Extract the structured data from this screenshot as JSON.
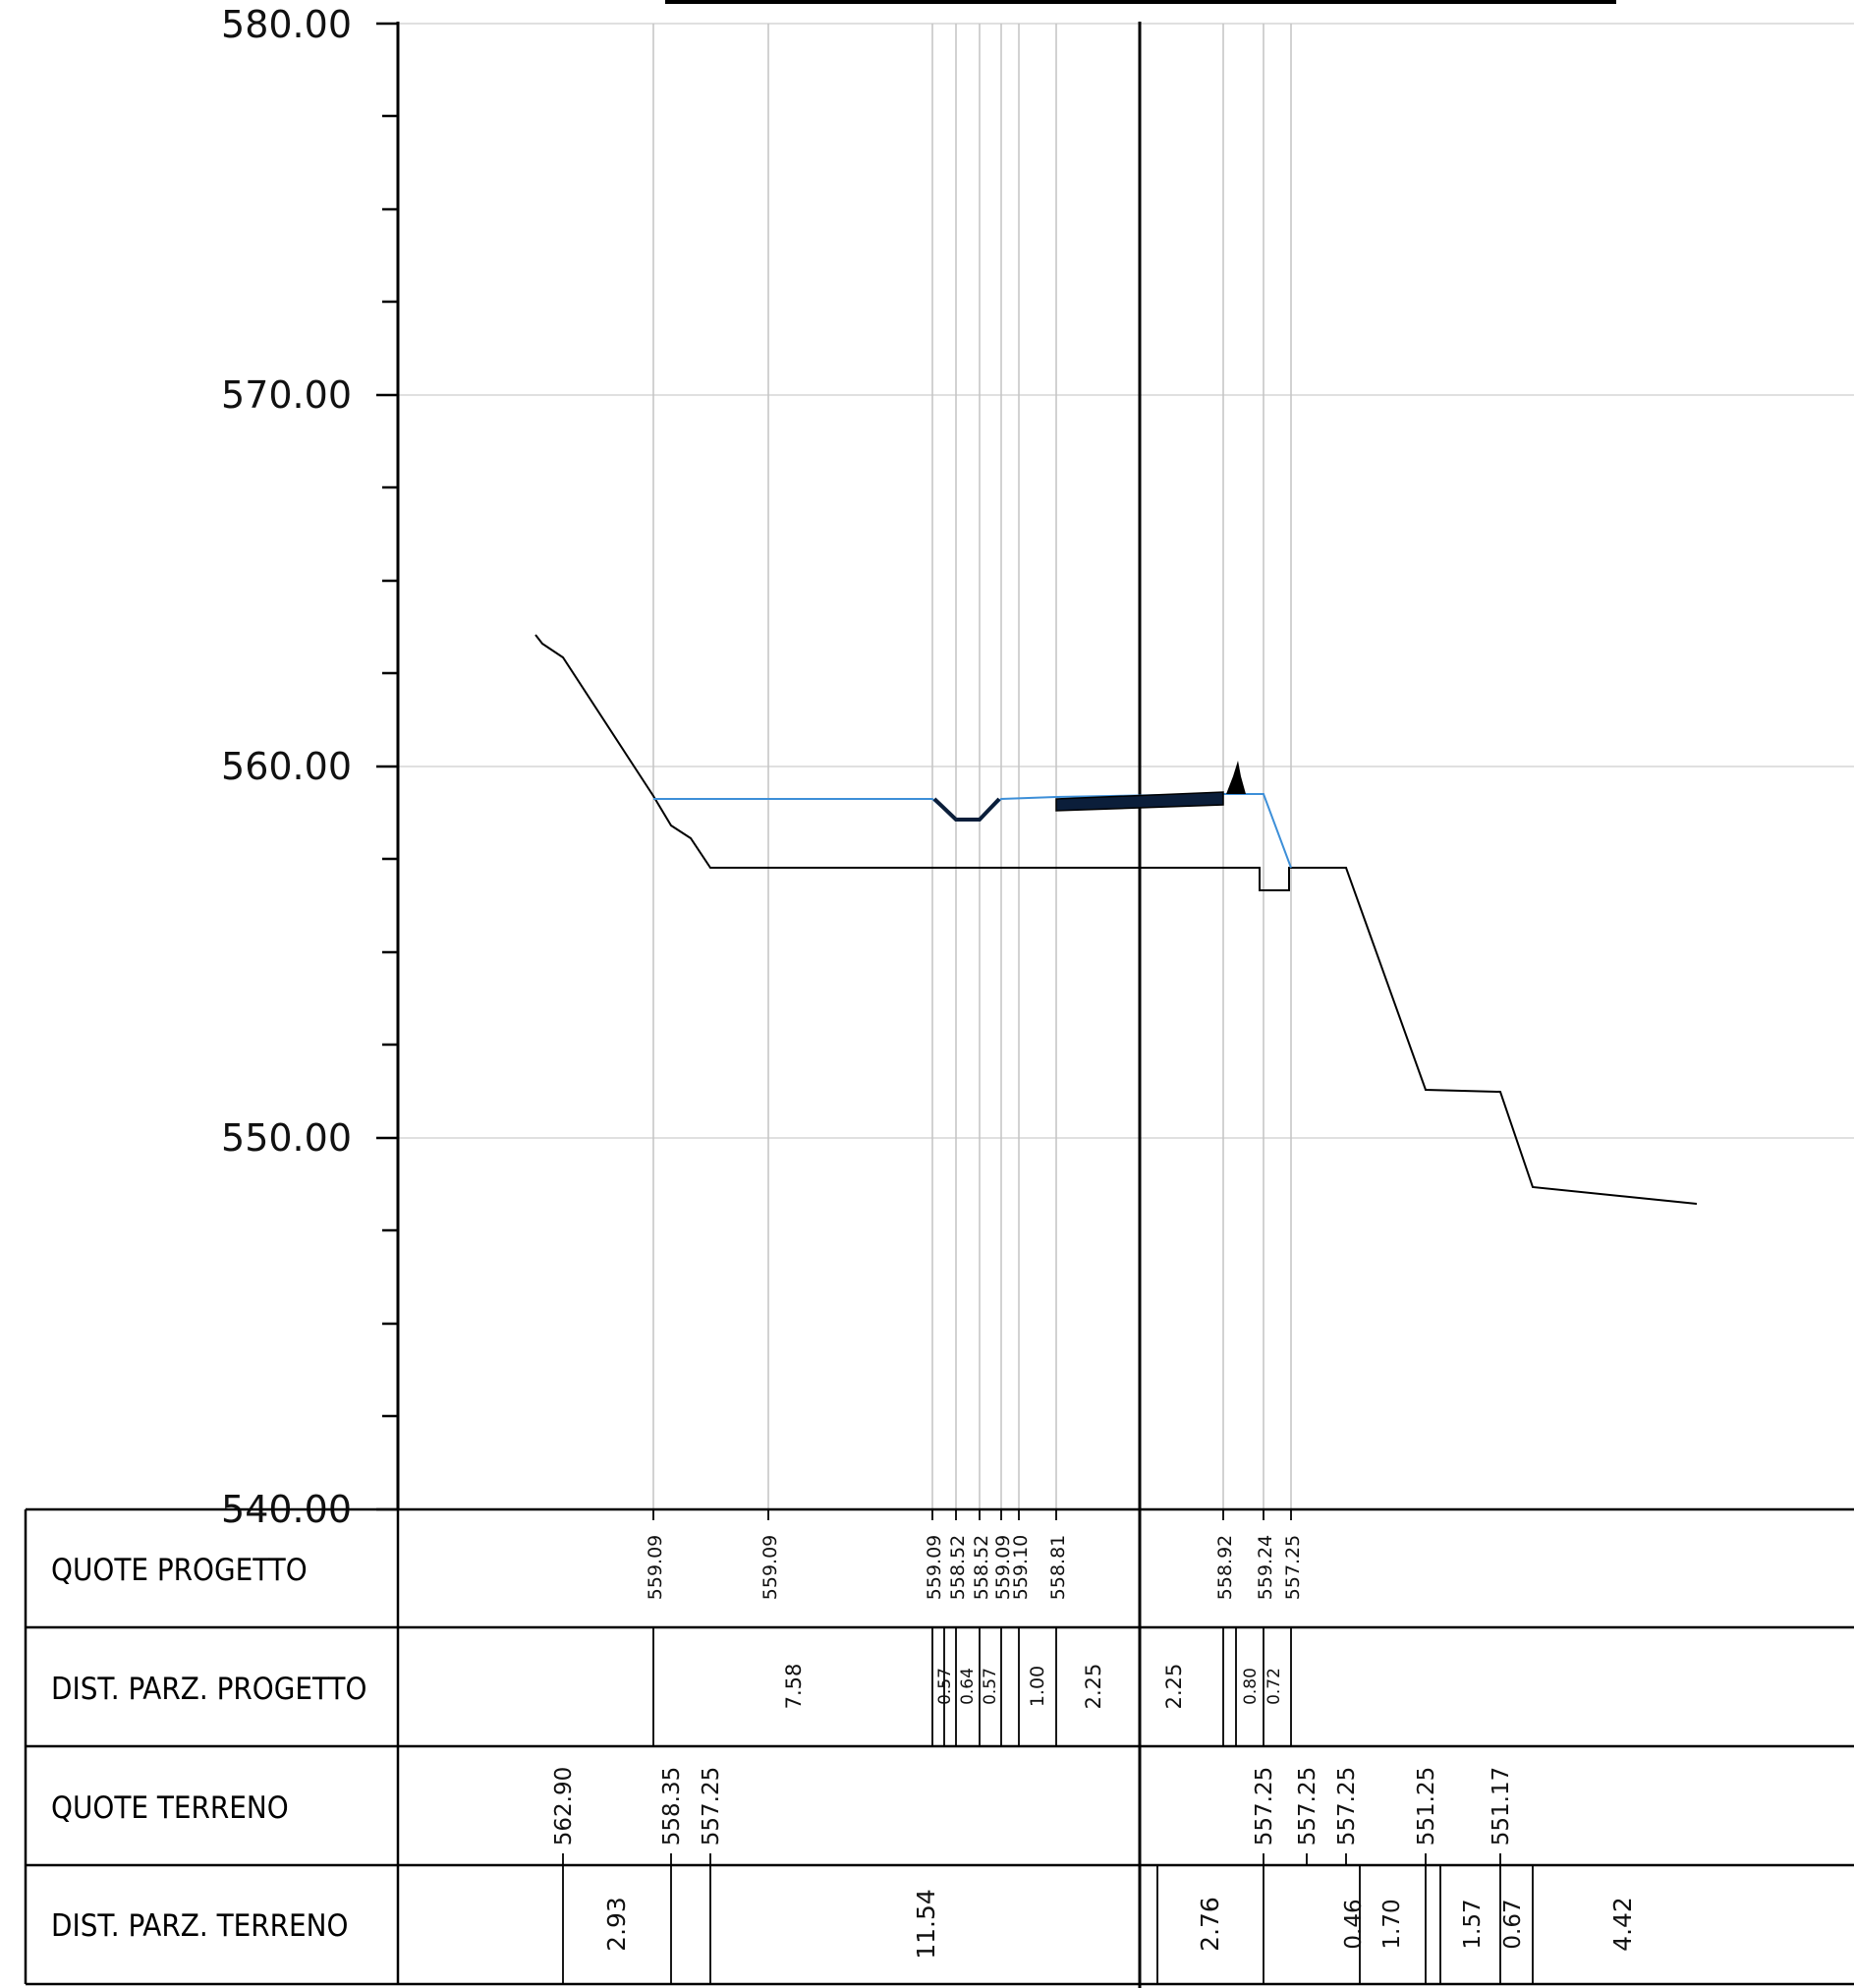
{
  "y_axis": {
    "min": 540,
    "max": 580,
    "major_step": 10,
    "minor_step": 2.5,
    "tick_labels": [
      "580.00",
      "570.00",
      "560.00",
      "550.00",
      "540.00"
    ]
  },
  "table": {
    "rows": [
      {
        "key": "quote_progetto",
        "label": "QUOTE  PROGETTO"
      },
      {
        "key": "dist_progetto",
        "label": "DIST.  PARZ.  PROGETTO"
      },
      {
        "key": "quote_terreno",
        "label": "QUOTE  TERRENO"
      },
      {
        "key": "dist_terreno",
        "label": "DIST.  PARZ.  TERRENO"
      }
    ]
  },
  "chart_data": {
    "type": "cross-section",
    "y_unit_label": "elevation",
    "ylim": [
      540,
      580
    ],
    "quote_progetto": [
      "559.09",
      "559.09",
      "559.09",
      "558.52",
      "558.52",
      "559.09",
      "559.10",
      "558.81",
      "558.92",
      "559.24",
      "557.25"
    ],
    "dist_parz_progetto": [
      "7.58",
      "0.57",
      "0.64",
      "0.57",
      "1.00",
      "2.25",
      "2.25",
      "0.80",
      "0.72"
    ],
    "quote_terreno": [
      "562.90",
      "558.35",
      "557.25",
      "557.25",
      "557.25",
      "557.25",
      "551.25",
      "551.17"
    ],
    "dist_parz_terreno": [
      "2.93",
      "11.54",
      "2.76",
      "0.46",
      "1.70",
      "1.57",
      "0.67",
      "4.42"
    ],
    "colors": {
      "terrain": "#000000",
      "design": "#3d8fd8",
      "grid": "#c8c8c8"
    }
  }
}
